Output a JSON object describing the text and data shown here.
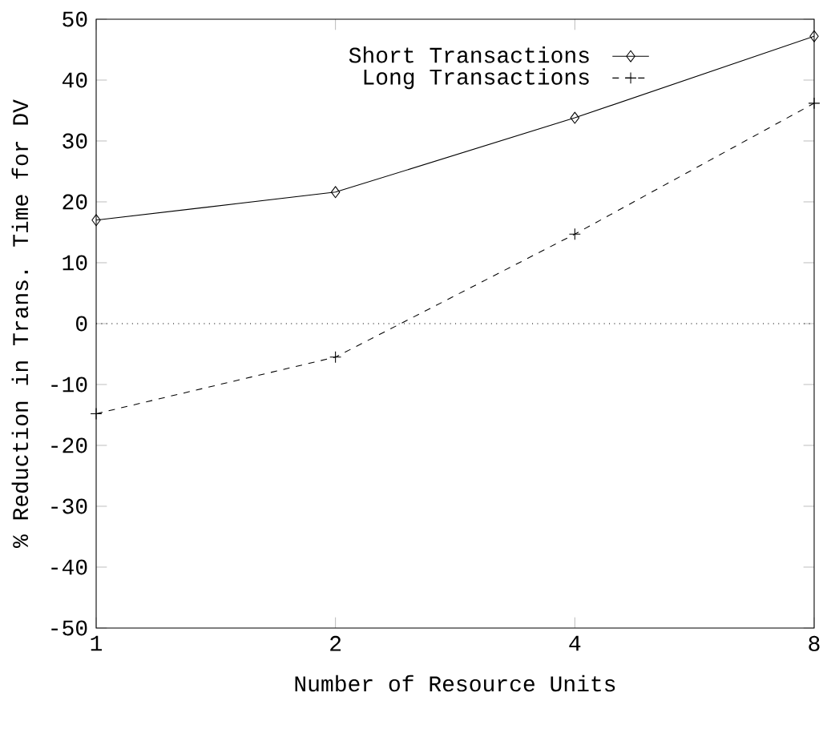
{
  "chart_data": {
    "type": "line",
    "xlabel": "Number of Resource Units",
    "ylabel": "% Reduction in Trans. Time for DV",
    "x": [
      1,
      2,
      4,
      8
    ],
    "log": "x",
    "series": [
      {
        "name": "Short Transactions",
        "color": "#000000",
        "values": [
          17.0,
          21.6,
          33.8,
          47.2
        ],
        "marker": "diamond",
        "line_style": "solid"
      },
      {
        "name": "Long Transactions",
        "color": "#000000",
        "values": [
          -14.8,
          -5.5,
          14.7,
          36.2
        ],
        "marker": "cross",
        "line_style": "dashed"
      }
    ],
    "xlim": [
      1,
      8
    ],
    "xticks": [
      1,
      2,
      4,
      8
    ],
    "ylim": [
      -50,
      50
    ],
    "yticks": [
      -50,
      -40,
      -30,
      -20,
      -10,
      0,
      10,
      20,
      30,
      40,
      50
    ],
    "ref_lines": [
      {
        "axis": "y",
        "value": 0,
        "line_style": "dotted",
        "color": "#000000"
      }
    ],
    "legend": "top right",
    "grid": false
  }
}
